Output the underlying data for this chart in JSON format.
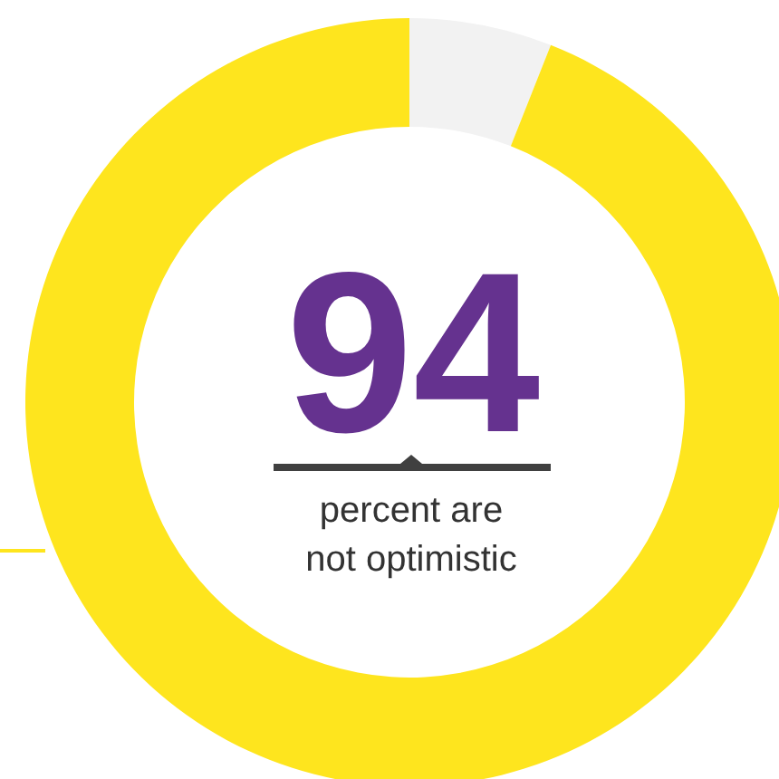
{
  "chart_data": {
    "type": "donut",
    "categories": [
      null,
      "percent are not optimistic"
    ],
    "values": [
      6,
      94
    ],
    "colors": [
      "#f2f2f2",
      "#fee51e"
    ],
    "value_labels": [
      null,
      "94"
    ]
  }
}
